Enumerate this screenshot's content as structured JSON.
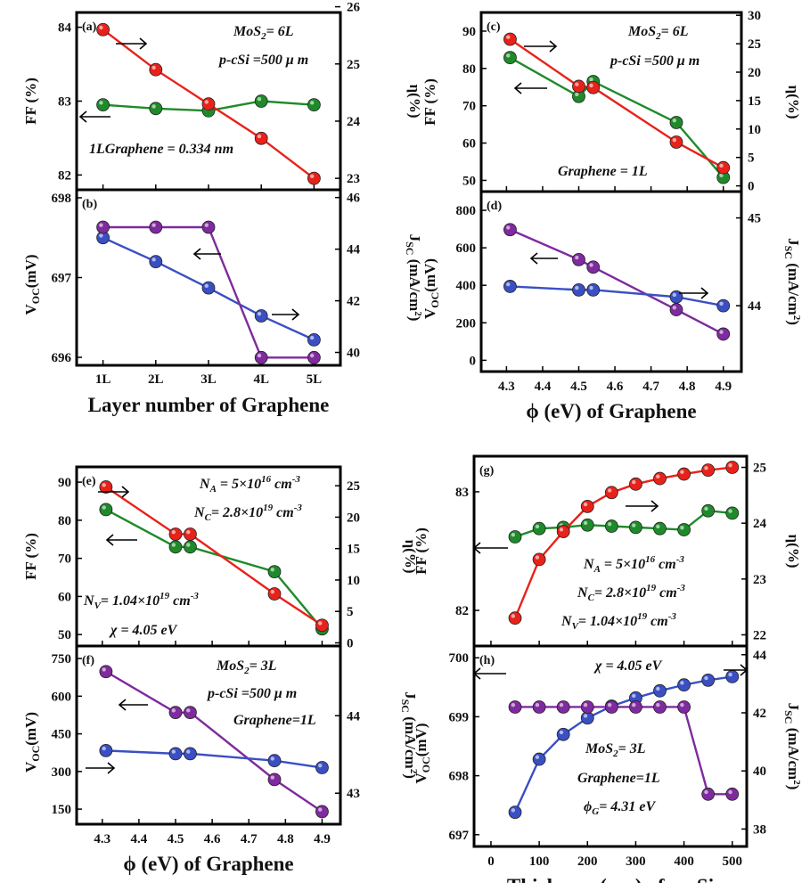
{
  "chart_data": [
    {
      "type": "line",
      "panel": "(a)",
      "x_categories": [
        "1L",
        "2L",
        "3L",
        "4L",
        "5L"
      ],
      "left_axis": {
        "label": "FF (%)",
        "lim": [
          81.8,
          84.2
        ],
        "ticks": [
          82,
          83,
          84
        ]
      },
      "right_axis": {
        "label": "η(%)",
        "lim": [
          22.8,
          25.9
        ],
        "ticks": [
          23,
          24,
          25,
          26
        ]
      },
      "series": [
        {
          "axis": "left",
          "color": "#1f8a2a",
          "values": [
            82.95,
            82.9,
            82.87,
            83.0,
            82.95
          ]
        },
        {
          "axis": "right",
          "color": "#e8221a",
          "values": [
            25.6,
            24.9,
            24.3,
            23.7,
            23.0
          ]
        }
      ],
      "annotations": [
        "MoS2= 6L",
        "p-cSi =500 μ m",
        "1LGraphene = 0.334 nm"
      ]
    },
    {
      "type": "line",
      "panel": "(b)",
      "x_categories": [
        "1L",
        "2L",
        "3L",
        "4L",
        "5L"
      ],
      "xlabel": "Layer number of Graphene",
      "left_axis": {
        "label": "VOC(mV)",
        "lim": [
          695.9,
          698.1
        ],
        "ticks": [
          696,
          697,
          698
        ]
      },
      "right_axis": {
        "label": "JSC (mA/cm2)",
        "lim": [
          39.5,
          46.3
        ],
        "ticks": [
          40,
          42,
          44,
          46
        ]
      },
      "series": [
        {
          "axis": "left",
          "color": "#3a4fc4",
          "values": [
            697.5,
            697.2,
            696.87,
            696.52,
            696.22
          ]
        },
        {
          "axis": "right",
          "color": "#7f2a9e",
          "values": [
            44.85,
            44.85,
            44.85,
            39.8,
            39.8
          ]
        }
      ]
    },
    {
      "type": "line",
      "panel": "(c)",
      "x": [
        4.31,
        4.5,
        4.54,
        4.77,
        4.9
      ],
      "xlim": [
        4.23,
        4.95
      ],
      "left_axis": {
        "label": "FF (%)",
        "lim": [
          47,
          95
        ],
        "ticks": [
          50,
          60,
          70,
          80,
          90
        ]
      },
      "right_axis": {
        "label": "η(%)",
        "lim": [
          -1,
          30.5
        ],
        "ticks": [
          0,
          5,
          10,
          15,
          20,
          25,
          30
        ]
      },
      "series": [
        {
          "axis": "left",
          "color": "#1f8a2a",
          "values": [
            82.9,
            72.5,
            76.5,
            65.5,
            50.8
          ]
        },
        {
          "axis": "right",
          "color": "#e8221a",
          "values": [
            25.8,
            17.5,
            17.3,
            7.7,
            3.2
          ]
        }
      ],
      "annotations": [
        "MoS2= 6L",
        "p-cSi =500 μ m",
        "Graphene = 1L"
      ]
    },
    {
      "type": "line",
      "panel": "(d)",
      "x": [
        4.31,
        4.5,
        4.54,
        4.77,
        4.9
      ],
      "xlim": [
        4.23,
        4.95
      ],
      "xticks": [
        4.3,
        4.4,
        4.5,
        4.6,
        4.7,
        4.8,
        4.9
      ],
      "xlabel": "ϕ (eV) of Graphene",
      "left_axis": {
        "label": "VOC(mV)",
        "lim": [
          -60,
          900
        ],
        "ticks": [
          0,
          200,
          400,
          600,
          800
        ]
      },
      "right_axis": {
        "label": "JSC (mA/cm2)",
        "lim": [
          43.25,
          45.3
        ],
        "ticks": [
          44,
          45
        ]
      },
      "series": [
        {
          "axis": "left",
          "color": "#7f2a9e",
          "values": [
            697,
            537,
            497,
            270,
            140
          ]
        },
        {
          "axis": "right",
          "color": "#3a4fc4",
          "values": [
            44.22,
            44.18,
            44.18,
            44.1,
            44.0
          ]
        }
      ]
    },
    {
      "type": "line",
      "panel": "(e)",
      "x": [
        4.31,
        4.5,
        4.54,
        4.77,
        4.9
      ],
      "xlim": [
        4.23,
        4.95
      ],
      "left_axis": {
        "label": "FF (%)",
        "lim": [
          47,
          94
        ],
        "ticks": [
          50,
          60,
          70,
          80,
          90
        ]
      },
      "right_axis": {
        "label": "η(%)",
        "lim": [
          -0.5,
          28
        ],
        "ticks": [
          0,
          5,
          10,
          15,
          20,
          25
        ]
      },
      "series": [
        {
          "axis": "left",
          "color": "#1f8a2a",
          "values": [
            82.8,
            73.0,
            73.0,
            66.5,
            51.5
          ]
        },
        {
          "axis": "right",
          "color": "#e8221a",
          "values": [
            24.8,
            17.3,
            17.3,
            7.8,
            2.8
          ]
        }
      ],
      "annotations": [
        "N_A = 5×10^16 cm^-3",
        "N_C= 2.8×10^19 cm^-3",
        "N_V= 1.04×10^19 cm^-3",
        "χ = 4.05 eV"
      ]
    },
    {
      "type": "line",
      "panel": "(f)",
      "x": [
        4.31,
        4.5,
        4.54,
        4.77,
        4.9
      ],
      "xlim": [
        4.23,
        4.95
      ],
      "xticks": [
        4.3,
        4.4,
        4.5,
        4.6,
        4.7,
        4.8,
        4.9
      ],
      "xlabel": "ϕ (eV) of Graphene",
      "left_axis": {
        "label": "VOC(mV)",
        "lim": [
          90,
          800
        ],
        "ticks": [
          150,
          300,
          450,
          600,
          750
        ]
      },
      "right_axis": {
        "label": "JSC (mA/cm2)",
        "lim": [
          42.6,
          44.9
        ],
        "ticks": [
          43,
          44
        ]
      },
      "series": [
        {
          "axis": "left",
          "color": "#7f2a9e",
          "values": [
            698,
            535,
            535,
            268,
            140
          ]
        },
        {
          "axis": "right",
          "color": "#3a4fc4",
          "values": [
            43.55,
            43.51,
            43.51,
            43.42,
            43.33
          ]
        }
      ],
      "annotations": [
        "MoS2= 3L",
        "p-cSi =500 μ m",
        "Graphene=1L"
      ]
    },
    {
      "type": "line",
      "panel": "(g)",
      "x": [
        50,
        100,
        150,
        200,
        250,
        300,
        350,
        400,
        450,
        500
      ],
      "xlim": [
        -35,
        530
      ],
      "left_axis": {
        "label": "FF (%)",
        "lim": [
          81.7,
          83.3
        ],
        "ticks": [
          82,
          83
        ]
      },
      "right_axis": {
        "label": "η(%)",
        "lim": [
          21.8,
          25.2
        ],
        "ticks": [
          22,
          23,
          24,
          25
        ]
      },
      "series": [
        {
          "axis": "left",
          "color": "#1f8a2a",
          "values": [
            82.62,
            82.69,
            82.7,
            82.72,
            82.71,
            82.7,
            82.69,
            82.68,
            82.84,
            82.82
          ]
        },
        {
          "axis": "right",
          "color": "#e8221a",
          "values": [
            22.3,
            23.35,
            23.85,
            24.3,
            24.55,
            24.7,
            24.8,
            24.88,
            24.95,
            25.0
          ]
        }
      ],
      "annotations": [
        "N_A = 5×10^16 cm^-3",
        "N_C= 2.8×10^19 cm^-3",
        "N_V= 1.04×10^19 cm^-3"
      ]
    },
    {
      "type": "line",
      "panel": "(h)",
      "x": [
        50,
        100,
        150,
        200,
        250,
        300,
        350,
        400,
        450,
        500
      ],
      "xlim": [
        -35,
        530
      ],
      "xticks": [
        0,
        100,
        200,
        300,
        400,
        500
      ],
      "xlabel": "Thickness (μm) of p-cSi",
      "left_axis": {
        "label": "VOC(mV)",
        "lim": [
          696.8,
          700.2
        ],
        "ticks": [
          697,
          698,
          699,
          700
        ]
      },
      "right_axis": {
        "label": "JSC (mA/cm2)",
        "lim": [
          37.4,
          44.3
        ],
        "ticks": [
          38,
          40,
          42,
          44
        ]
      },
      "series": [
        {
          "axis": "left",
          "color": "#3a4fc4",
          "values": [
            697.38,
            698.28,
            698.7,
            698.98,
            699.18,
            699.32,
            699.44,
            699.54,
            699.62,
            699.68
          ]
        },
        {
          "axis": "right",
          "color": "#7f2a9e",
          "values": [
            42.2,
            42.2,
            42.2,
            42.2,
            42.2,
            42.2,
            42.2,
            42.2,
            39.2,
            39.2
          ]
        }
      ],
      "annotations": [
        "χ = 4.05 eV",
        "MoS2= 3L",
        "Graphene=1L",
        "ϕG= 4.31 eV"
      ]
    }
  ]
}
